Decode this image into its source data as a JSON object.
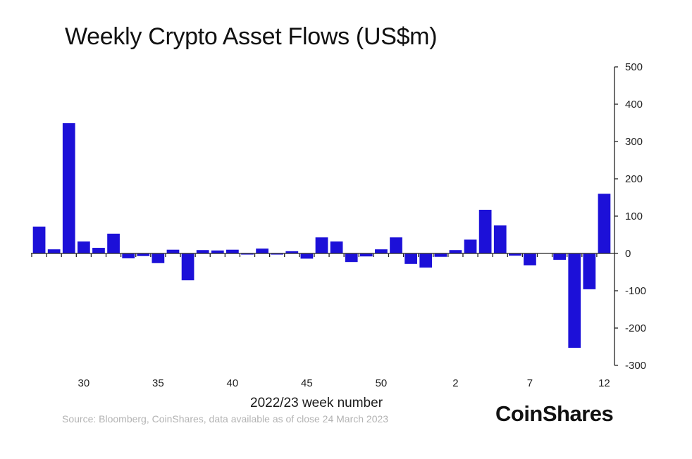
{
  "chart_data": {
    "type": "bar",
    "title": "Weekly Crypto Asset Flows (US$m)",
    "xlabel": "2022/23 week number",
    "ylabel": "",
    "ylim": [
      -300,
      500
    ],
    "yticks": [
      500,
      400,
      300,
      200,
      100,
      0,
      -100,
      -200,
      -300
    ],
    "ytick_labels": [
      "500",
      "400",
      "300",
      "200",
      "100",
      "0",
      "-100",
      "-200",
      "-300"
    ],
    "y_axis_side": "right",
    "grid": false,
    "bar_color": "#1c10d8",
    "xtick_labels": [
      {
        "index": 3,
        "label": "30"
      },
      {
        "index": 8,
        "label": "35"
      },
      {
        "index": 13,
        "label": "40"
      },
      {
        "index": 18,
        "label": "45"
      },
      {
        "index": 23,
        "label": "50"
      },
      {
        "index": 28,
        "label": "2"
      },
      {
        "index": 33,
        "label": "7"
      },
      {
        "index": 38,
        "label": "12"
      }
    ],
    "values": [
      72,
      11,
      349,
      32,
      15,
      53,
      -13,
      -7,
      -26,
      10,
      -72,
      9,
      8,
      10,
      -3,
      13,
      -3,
      6,
      -14,
      43,
      32,
      -23,
      -8,
      11,
      43,
      -28,
      -38,
      -9,
      9,
      37,
      117,
      75,
      -6,
      -32,
      0,
      -17,
      -253,
      -96,
      160
    ]
  },
  "footer": {
    "source": "Source: Bloomberg, CoinShares, data available as of close 24 March 2023",
    "logo": "CoinShares"
  }
}
